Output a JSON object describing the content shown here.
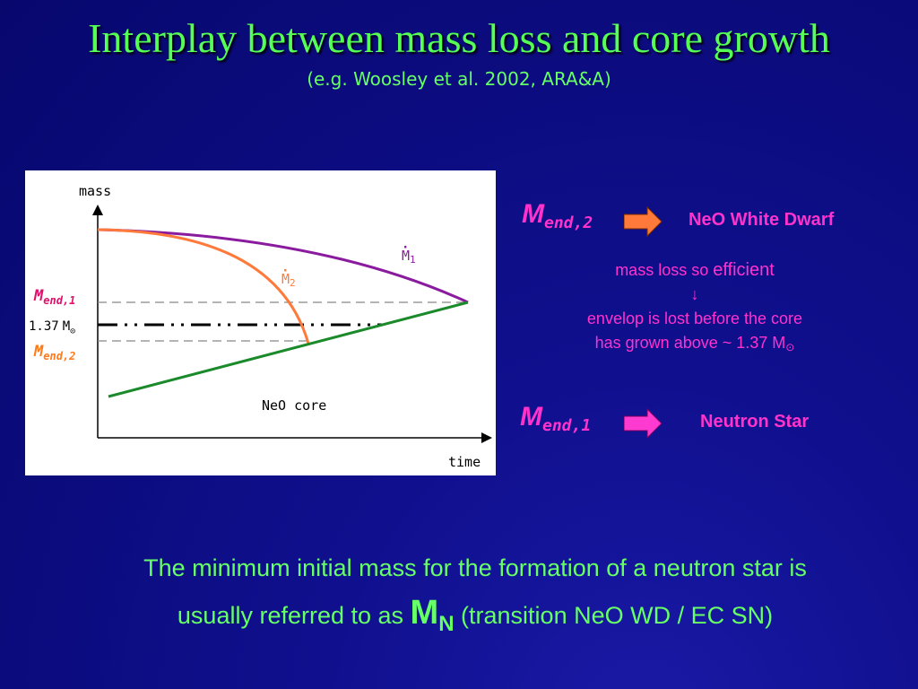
{
  "title": "Interplay between mass loss and core growth",
  "subtitle": "(e.g. Woosley et al. 2002, ARA&A)",
  "diagram": {
    "y_axis_label": "mass",
    "x_axis_label": "time",
    "core_label": "NeO core",
    "mdot1_symbol": "M",
    "mdot1_sub": "1",
    "mdot2_symbol": "M",
    "mdot2_sub": "2",
    "mend1_symbol": "M",
    "mend1_sub": "end,1",
    "mend2_symbol": "M",
    "mend2_sub": "end,2",
    "threshold_value": "1.37",
    "threshold_unit": "M",
    "colors": {
      "mdot1": "#8a1a9e",
      "mdot2": "#ff7a3a",
      "core": "#1a8a2a",
      "mend1": "#e0106a",
      "mend2": "#ff7a1a"
    }
  },
  "outcomes": [
    {
      "symbol": "M",
      "sub": "end,2",
      "result": "NeO White Dwarf",
      "result_color": "#ff33cc",
      "arrow_color": "#ff7a3a"
    },
    {
      "symbol": "M",
      "sub": "end,1",
      "result": "Neutron Star",
      "result_color": "#ff33cc",
      "arrow_color": "#ff3ad0"
    }
  ],
  "note": {
    "line1_prefix": "mass loss so ",
    "line1_emph": "efficient",
    "arrow": "↓",
    "line2": "envelop is lost before the core",
    "line3": "has grown above ~ 1.37 M",
    "sun_symbol": "⊙"
  },
  "bottom": {
    "line1": "The minimum initial mass for the formation of a neutron star is",
    "line2_prefix": "usually referred to as ",
    "mn_symbol": "M",
    "mn_sub": "N",
    "line2_suffix": " (transition NeO WD / EC SN)"
  }
}
